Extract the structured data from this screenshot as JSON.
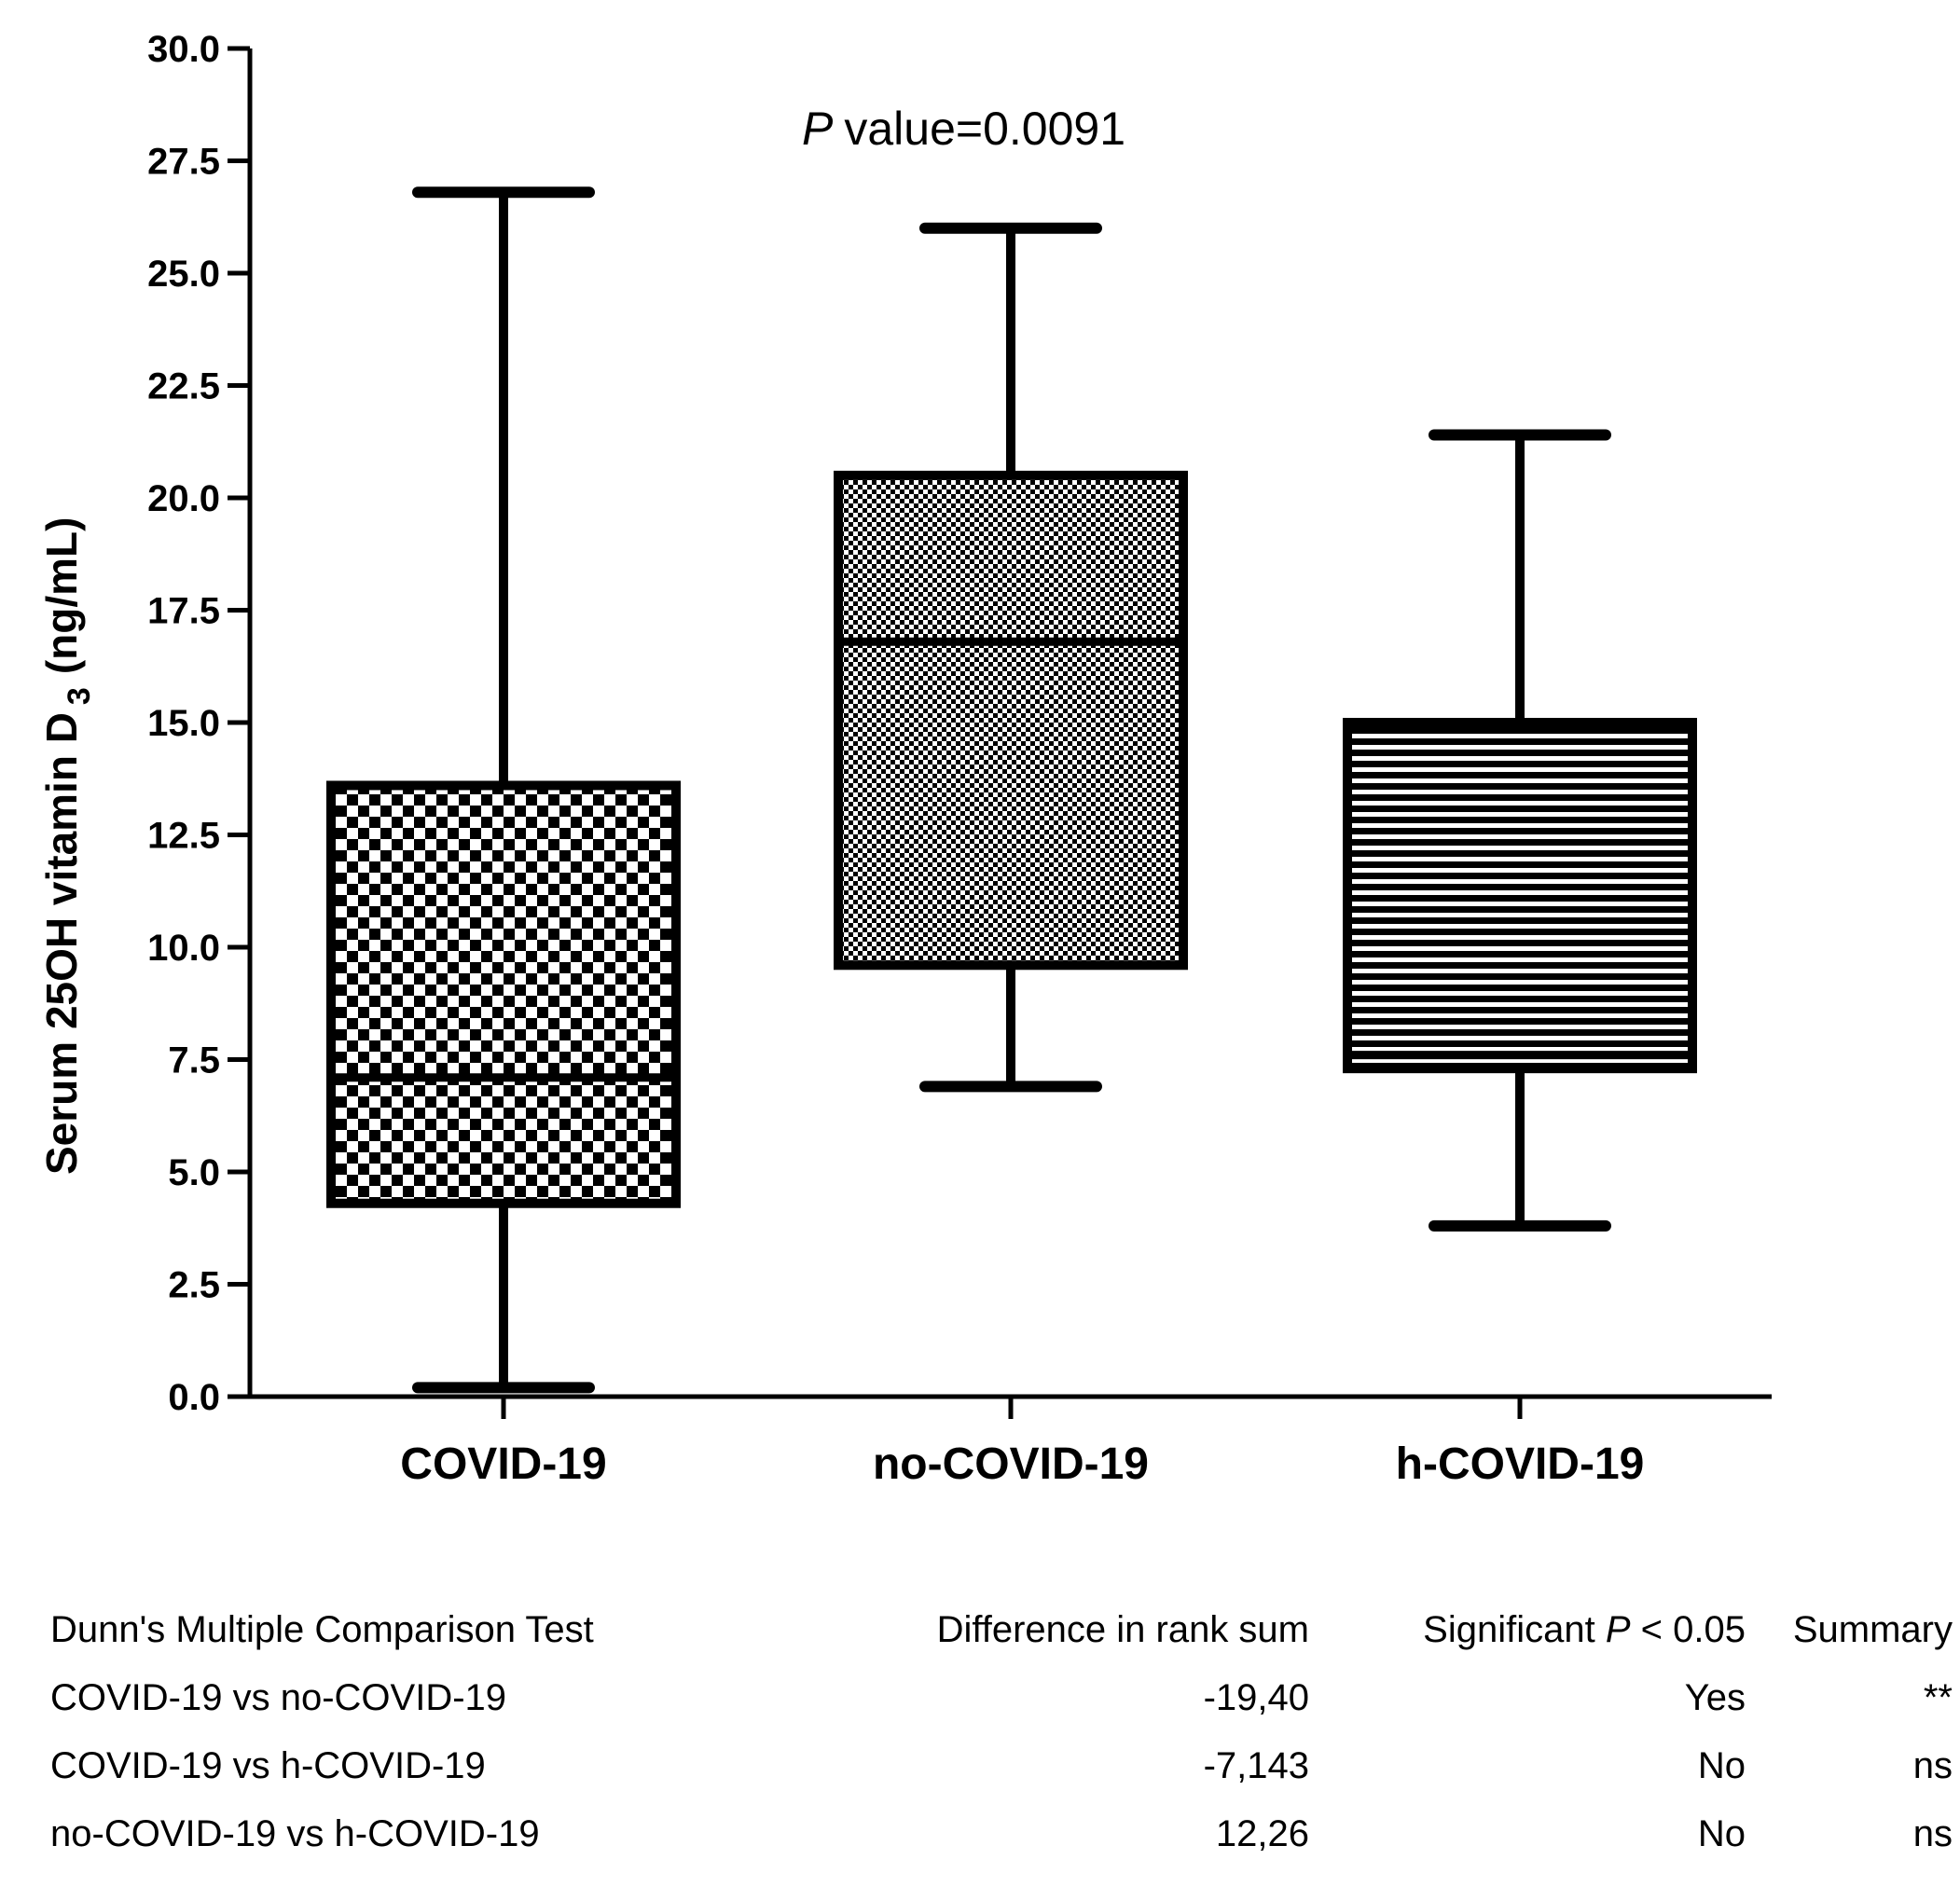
{
  "chart_data": {
    "type": "box",
    "title": "P value=0.0091",
    "p_label": "P",
    "p_value_text": "value=0.0091",
    "ylabel_main": "Serum 25OH vitamin D",
    "ylabel_sub": "3",
    "ylabel_unit": "(ng/mL)",
    "ylim": [
      0,
      30
    ],
    "yticks": [
      "0.0",
      "2.5",
      "5.0",
      "7.5",
      "10.0",
      "12.5",
      "15.0",
      "17.5",
      "20.0",
      "22.5",
      "25.0",
      "27.5",
      "30.0"
    ],
    "ytick_values": [
      0,
      2.5,
      5,
      7.5,
      10,
      12.5,
      15,
      17.5,
      20,
      22.5,
      25,
      27.5,
      30
    ],
    "categories": [
      "COVID-19",
      "no-COVID-19",
      "h-COVID-19"
    ],
    "boxes": [
      {
        "name": "COVID-19",
        "min": 0.2,
        "q1": 4.3,
        "median": 7.1,
        "q3": 13.6,
        "max": 26.8,
        "pattern": "checker"
      },
      {
        "name": "no-COVID-19",
        "min": 6.9,
        "q1": 9.6,
        "median": 16.8,
        "q3": 20.5,
        "max": 26.0,
        "pattern": "dots"
      },
      {
        "name": "h-COVID-19",
        "min": 3.8,
        "q1": 7.3,
        "median": 7.6,
        "q3": 15.0,
        "max": 21.4,
        "pattern": "hlines"
      }
    ]
  },
  "table": {
    "headers": {
      "test": "Dunn's Multiple Comparison Test",
      "diff": "Difference in rank sum",
      "sig_prefix": "Significant",
      "sig_p": "P",
      "sig_suffix": "< 0.05",
      "summary": "Summary"
    },
    "rows": [
      {
        "comparison": "COVID-19 vs no-COVID-19",
        "diff": "-19,40",
        "significant": "Yes",
        "summary": "**"
      },
      {
        "comparison": "COVID-19 vs h-COVID-19",
        "diff": "-7,143",
        "significant": "No",
        "summary": "ns"
      },
      {
        "comparison": "no-COVID-19 vs h-COVID-19",
        "diff": "12,26",
        "significant": "No",
        "summary": "ns"
      }
    ]
  }
}
